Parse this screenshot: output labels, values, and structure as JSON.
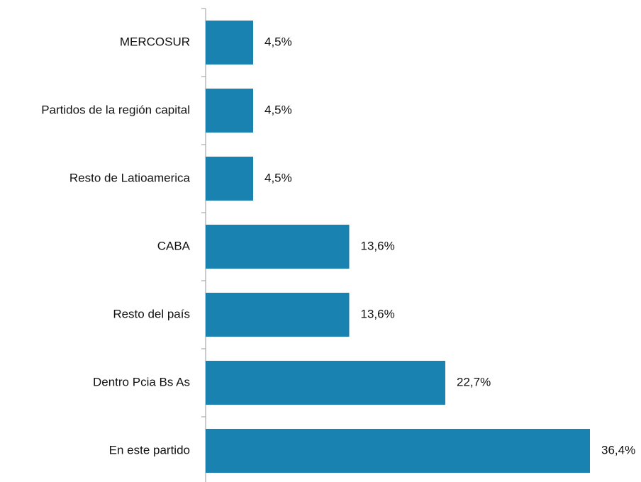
{
  "chart_data": {
    "type": "barh",
    "categories": [
      "MERCOSUR",
      "Partidos de la región capital",
      "Resto de Latioamerica",
      "CABA",
      "Resto del país",
      "Dentro Pcia Bs As",
      "En este partido"
    ],
    "values": [
      4.5,
      4.5,
      4.5,
      13.6,
      13.6,
      22.7,
      36.4
    ],
    "value_labels": [
      "4,5%",
      "4,5%",
      "4,5%",
      "13,6%",
      "13,6%",
      "22,7%",
      "36,4%"
    ],
    "color": "#1a82b0"
  }
}
